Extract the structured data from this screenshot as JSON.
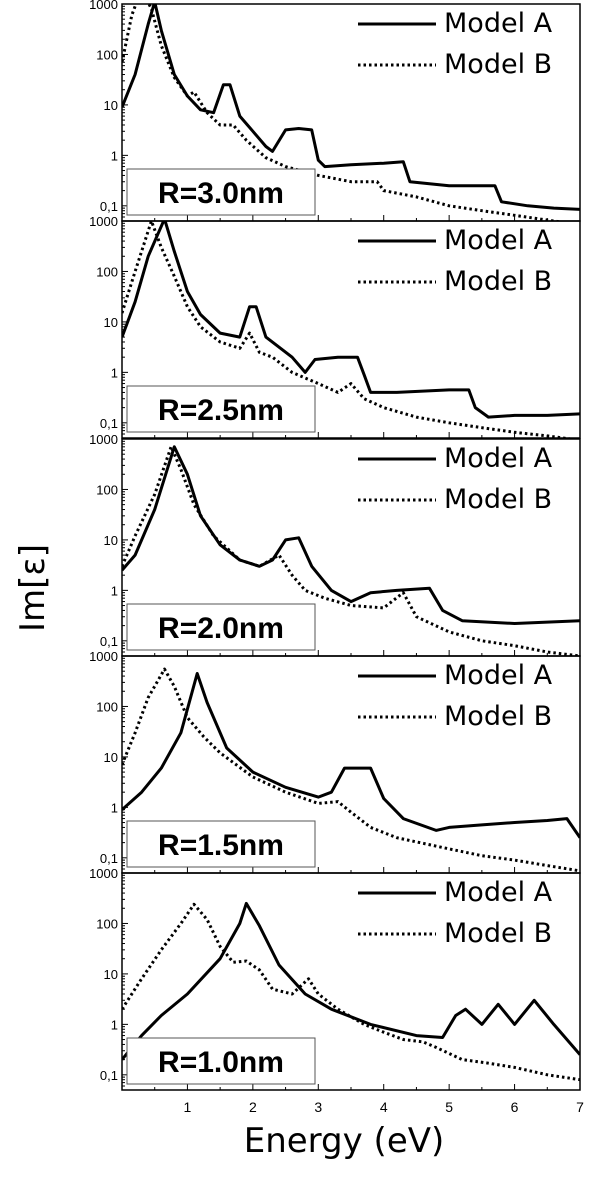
{
  "chart_data": {
    "type": "line",
    "xlabel": "Energy (eV)",
    "ylabel": "Im[ε]",
    "xlim": [
      0,
      7
    ],
    "ylim": [
      0.05,
      1000
    ],
    "yscale": "log",
    "x_tick_labels": [
      "1",
      "2",
      "3",
      "4",
      "5",
      "6",
      "7"
    ],
    "y_tick_labels": [
      "0,1",
      "1",
      "10",
      "100",
      "1000"
    ],
    "legend": {
      "placement": "top-right",
      "entries": [
        "Model A",
        "Model B"
      ]
    },
    "panels": [
      {
        "label": "R=3.0nm",
        "series": [
          {
            "name": "Model A",
            "style": "solid",
            "points": [
              [
                0.0,
                9
              ],
              [
                0.2,
                40
              ],
              [
                0.4,
                400
              ],
              [
                0.5,
                1100
              ],
              [
                0.6,
                300
              ],
              [
                0.8,
                40
              ],
              [
                1.0,
                15
              ],
              [
                1.2,
                8
              ],
              [
                1.4,
                7
              ],
              [
                1.55,
                25
              ],
              [
                1.65,
                25
              ],
              [
                1.8,
                6
              ],
              [
                2.0,
                3
              ],
              [
                2.2,
                1.5
              ],
              [
                2.3,
                1.2
              ],
              [
                2.5,
                3.2
              ],
              [
                2.7,
                3.4
              ],
              [
                2.9,
                3.2
              ],
              [
                3.0,
                0.8
              ],
              [
                3.1,
                0.6
              ],
              [
                3.5,
                0.65
              ],
              [
                4.0,
                0.7
              ],
              [
                4.3,
                0.75
              ],
              [
                4.4,
                0.3
              ],
              [
                5.0,
                0.25
              ],
              [
                5.5,
                0.25
              ],
              [
                5.7,
                0.25
              ],
              [
                5.8,
                0.12
              ],
              [
                6.2,
                0.1
              ],
              [
                6.6,
                0.09
              ],
              [
                7.0,
                0.085
              ]
            ]
          },
          {
            "name": "Model B",
            "style": "dotted",
            "points": [
              [
                0.0,
                70
              ],
              [
                0.15,
                600
              ],
              [
                0.3,
                2000
              ],
              [
                0.45,
                800
              ],
              [
                0.6,
                150
              ],
              [
                0.8,
                35
              ],
              [
                1.0,
                15
              ],
              [
                1.1,
                18
              ],
              [
                1.3,
                7
              ],
              [
                1.5,
                4
              ],
              [
                1.7,
                4
              ],
              [
                1.9,
                2
              ],
              [
                2.2,
                0.9
              ],
              [
                2.5,
                0.6
              ],
              [
                3.0,
                0.4
              ],
              [
                3.5,
                0.3
              ],
              [
                3.9,
                0.3
              ],
              [
                4.0,
                0.2
              ],
              [
                4.5,
                0.15
              ],
              [
                5.0,
                0.1
              ],
              [
                5.5,
                0.08
              ],
              [
                6.0,
                0.065
              ],
              [
                6.5,
                0.052
              ],
              [
                7.0,
                0.042
              ]
            ]
          }
        ]
      },
      {
        "label": "R=2.5nm",
        "series": [
          {
            "name": "Model A",
            "style": "solid",
            "points": [
              [
                0.0,
                5
              ],
              [
                0.2,
                25
              ],
              [
                0.4,
                200
              ],
              [
                0.65,
                1100
              ],
              [
                0.8,
                250
              ],
              [
                1.0,
                40
              ],
              [
                1.2,
                14
              ],
              [
                1.5,
                6
              ],
              [
                1.8,
                5
              ],
              [
                1.95,
                20
              ],
              [
                2.05,
                20
              ],
              [
                2.2,
                5
              ],
              [
                2.6,
                2
              ],
              [
                2.8,
                1
              ],
              [
                2.95,
                1.8
              ],
              [
                3.3,
                2
              ],
              [
                3.6,
                2
              ],
              [
                3.7,
                0.9
              ],
              [
                3.8,
                0.4
              ],
              [
                4.2,
                0.4
              ],
              [
                5.0,
                0.45
              ],
              [
                5.3,
                0.45
              ],
              [
                5.4,
                0.2
              ],
              [
                5.6,
                0.13
              ],
              [
                6.0,
                0.14
              ],
              [
                6.5,
                0.14
              ],
              [
                7.0,
                0.15
              ]
            ]
          },
          {
            "name": "Model B",
            "style": "dotted",
            "points": [
              [
                0.0,
                15
              ],
              [
                0.2,
                100
              ],
              [
                0.45,
                1000
              ],
              [
                0.6,
                300
              ],
              [
                0.8,
                80
              ],
              [
                1.0,
                20
              ],
              [
                1.2,
                8
              ],
              [
                1.5,
                4
              ],
              [
                1.8,
                3
              ],
              [
                1.95,
                6
              ],
              [
                2.1,
                2.5
              ],
              [
                2.3,
                2
              ],
              [
                2.6,
                1
              ],
              [
                3.0,
                0.6
              ],
              [
                3.3,
                0.4
              ],
              [
                3.5,
                0.6
              ],
              [
                3.7,
                0.3
              ],
              [
                4.0,
                0.2
              ],
              [
                4.5,
                0.13
              ],
              [
                5.0,
                0.1
              ],
              [
                5.5,
                0.08
              ],
              [
                6.0,
                0.065
              ],
              [
                6.5,
                0.055
              ],
              [
                7.0,
                0.045
              ]
            ]
          }
        ]
      },
      {
        "label": "R=2.0nm",
        "series": [
          {
            "name": "Model A",
            "style": "solid",
            "points": [
              [
                0.0,
                2.5
              ],
              [
                0.2,
                5
              ],
              [
                0.5,
                40
              ],
              [
                0.8,
                700
              ],
              [
                1.0,
                200
              ],
              [
                1.2,
                30
              ],
              [
                1.5,
                8
              ],
              [
                1.8,
                4
              ],
              [
                2.1,
                3
              ],
              [
                2.3,
                4
              ],
              [
                2.5,
                10
              ],
              [
                2.7,
                11
              ],
              [
                2.9,
                3
              ],
              [
                3.2,
                1
              ],
              [
                3.5,
                0.6
              ],
              [
                3.8,
                0.9
              ],
              [
                4.2,
                1
              ],
              [
                4.7,
                1.1
              ],
              [
                4.9,
                0.4
              ],
              [
                5.2,
                0.25
              ],
              [
                6.0,
                0.22
              ],
              [
                7.0,
                0.25
              ]
            ]
          },
          {
            "name": "Model B",
            "style": "dotted",
            "points": [
              [
                0.0,
                3
              ],
              [
                0.2,
                12
              ],
              [
                0.5,
                80
              ],
              [
                0.75,
                700
              ],
              [
                0.9,
                250
              ],
              [
                1.1,
                50
              ],
              [
                1.4,
                12
              ],
              [
                1.8,
                4
              ],
              [
                2.1,
                3
              ],
              [
                2.4,
                5
              ],
              [
                2.6,
                2
              ],
              [
                2.8,
                1
              ],
              [
                3.1,
                0.7
              ],
              [
                3.5,
                0.5
              ],
              [
                4.0,
                0.45
              ],
              [
                4.3,
                0.9
              ],
              [
                4.5,
                0.3
              ],
              [
                5.0,
                0.15
              ],
              [
                5.5,
                0.1
              ],
              [
                6.0,
                0.08
              ],
              [
                6.5,
                0.06
              ],
              [
                7.0,
                0.05
              ]
            ]
          }
        ]
      },
      {
        "label": "R=1.5nm",
        "series": [
          {
            "name": "Model A",
            "style": "solid",
            "points": [
              [
                0.0,
                0.9
              ],
              [
                0.3,
                2
              ],
              [
                0.6,
                6
              ],
              [
                0.9,
                30
              ],
              [
                1.15,
                450
              ],
              [
                1.3,
                120
              ],
              [
                1.6,
                15
              ],
              [
                2.0,
                5
              ],
              [
                2.5,
                2.5
              ],
              [
                3.0,
                1.6
              ],
              [
                3.2,
                2
              ],
              [
                3.4,
                6
              ],
              [
                3.6,
                6
              ],
              [
                3.8,
                6
              ],
              [
                4.0,
                1.5
              ],
              [
                4.3,
                0.6
              ],
              [
                4.8,
                0.35
              ],
              [
                5.0,
                0.4
              ],
              [
                5.5,
                0.45
              ],
              [
                6.0,
                0.5
              ],
              [
                6.5,
                0.55
              ],
              [
                6.8,
                0.6
              ],
              [
                7.0,
                0.25
              ]
            ]
          },
          {
            "name": "Model B",
            "style": "dotted",
            "points": [
              [
                0.0,
                7
              ],
              [
                0.2,
                30
              ],
              [
                0.4,
                150
              ],
              [
                0.65,
                550
              ],
              [
                0.8,
                250
              ],
              [
                1.0,
                60
              ],
              [
                1.25,
                25
              ],
              [
                1.5,
                12
              ],
              [
                2.0,
                4
              ],
              [
                2.5,
                2
              ],
              [
                3.0,
                1.2
              ],
              [
                3.3,
                1.3
              ],
              [
                3.5,
                0.8
              ],
              [
                3.8,
                0.4
              ],
              [
                4.2,
                0.25
              ],
              [
                5.0,
                0.15
              ],
              [
                5.5,
                0.11
              ],
              [
                6.0,
                0.09
              ],
              [
                6.5,
                0.07
              ],
              [
                7.0,
                0.055
              ]
            ]
          }
        ]
      },
      {
        "label": "R=1.0nm",
        "series": [
          {
            "name": "Model A",
            "style": "solid",
            "points": [
              [
                0.0,
                0.2
              ],
              [
                0.3,
                0.6
              ],
              [
                0.6,
                1.5
              ],
              [
                1.0,
                4
              ],
              [
                1.5,
                20
              ],
              [
                1.8,
                100
              ],
              [
                1.9,
                250
              ],
              [
                2.1,
                90
              ],
              [
                2.4,
                15
              ],
              [
                2.8,
                4
              ],
              [
                3.2,
                2
              ],
              [
                3.8,
                1
              ],
              [
                4.5,
                0.6
              ],
              [
                4.9,
                0.55
              ],
              [
                5.1,
                1.5
              ],
              [
                5.25,
                2
              ],
              [
                5.5,
                1
              ],
              [
                5.75,
                2.5
              ],
              [
                6.0,
                1
              ],
              [
                6.3,
                3
              ],
              [
                6.6,
                1
              ],
              [
                7.0,
                0.25
              ]
            ]
          },
          {
            "name": "Model B",
            "style": "dotted",
            "points": [
              [
                0.0,
                2
              ],
              [
                0.3,
                8
              ],
              [
                0.6,
                30
              ],
              [
                0.9,
                100
              ],
              [
                1.1,
                240
              ],
              [
                1.3,
                120
              ],
              [
                1.5,
                35
              ],
              [
                1.7,
                17
              ],
              [
                1.9,
                18
              ],
              [
                2.1,
                12
              ],
              [
                2.3,
                5
              ],
              [
                2.6,
                4
              ],
              [
                2.85,
                8
              ],
              [
                3.0,
                4
              ],
              [
                3.3,
                2
              ],
              [
                3.7,
                1
              ],
              [
                4.0,
                0.7
              ],
              [
                4.3,
                0.5
              ],
              [
                4.6,
                0.45
              ],
              [
                4.8,
                0.35
              ],
              [
                5.2,
                0.2
              ],
              [
                5.6,
                0.17
              ],
              [
                6.0,
                0.14
              ],
              [
                6.5,
                0.1
              ],
              [
                7.0,
                0.08
              ]
            ]
          }
        ]
      }
    ]
  }
}
